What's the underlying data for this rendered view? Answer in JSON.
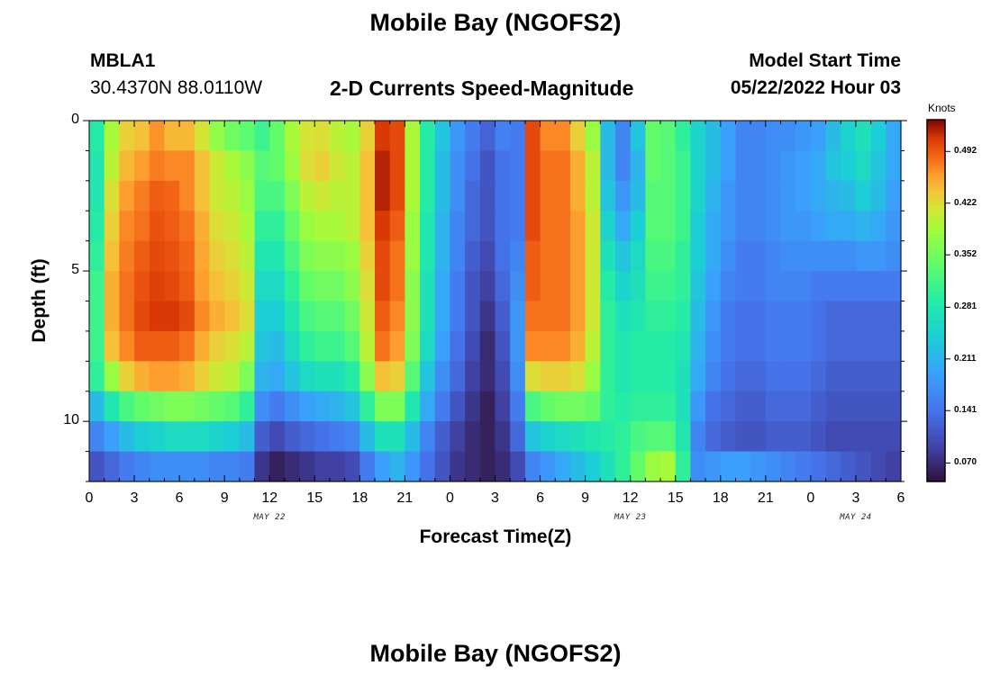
{
  "page": {
    "title": "Mobile Bay (NGOFS2)",
    "title_repeat": "Mobile Bay (NGOFS2)",
    "station_id": "MBLA1",
    "station_coords": "30.4370N  88.0110W",
    "model_start_label": "Model Start Time",
    "model_start_value": "05/22/2022 Hour 03"
  },
  "chart_data": {
    "type": "heatmap",
    "title": "2-D Currents Speed-Magnitude",
    "xlabel": "Forecast Time(Z)",
    "ylabel": "Depth (ft)",
    "x_range_hours": [
      0,
      54
    ],
    "x_ticks": [
      "0",
      "3",
      "6",
      "9",
      "12",
      "15",
      "18",
      "21",
      "0",
      "3",
      "6",
      "9",
      "12",
      "15",
      "18",
      "21",
      "0",
      "3",
      "6"
    ],
    "x_date_labels": [
      {
        "text": "MAY 22",
        "hour": 12
      },
      {
        "text": "MAY 23",
        "hour": 36
      },
      {
        "text": "MAY 24",
        "hour": 51
      }
    ],
    "y_range_ft": [
      0,
      12
    ],
    "y_ticks": [
      "0",
      "5",
      "10"
    ],
    "y_ticks_values": [
      0,
      5,
      10
    ],
    "colorbar": {
      "unit": "Knots",
      "ticks": [
        "0.492",
        "0.422",
        "0.352",
        "0.281",
        "0.211",
        "0.141",
        "0.070"
      ],
      "tick_values": [
        0.492,
        0.422,
        0.352,
        0.281,
        0.211,
        0.141,
        0.07
      ],
      "range": [
        0.045,
        0.535
      ]
    },
    "grid": false,
    "depth_layers": 12,
    "time_hours": [
      0,
      1,
      2,
      3,
      4,
      5,
      6,
      7,
      8,
      9,
      10,
      11,
      12,
      13,
      14,
      15,
      16,
      17,
      18,
      19,
      20,
      21,
      22,
      23,
      24,
      25,
      26,
      27,
      28,
      29,
      30,
      31,
      32,
      33,
      34,
      35,
      36,
      37,
      38,
      39,
      40,
      41,
      42,
      43,
      44,
      45,
      46,
      47,
      48,
      49,
      50,
      51,
      52,
      53
    ],
    "speed_rows_knots": [
      [
        0.29,
        0.39,
        0.43,
        0.44,
        0.465,
        0.445,
        0.445,
        0.415,
        0.375,
        0.35,
        0.335,
        0.31,
        0.34,
        0.39,
        0.415,
        0.42,
        0.4,
        0.39,
        0.43,
        0.51,
        0.5,
        0.39,
        0.29,
        0.23,
        0.18,
        0.15,
        0.125,
        0.155,
        0.15,
        0.5,
        0.47,
        0.47,
        0.43,
        0.38,
        0.22,
        0.16,
        0.23,
        0.34,
        0.33,
        0.3,
        0.25,
        0.22,
        0.19,
        0.16,
        0.16,
        0.17,
        0.17,
        0.18,
        0.19,
        0.22,
        0.25,
        0.27,
        0.24,
        0.2
      ],
      [
        0.28,
        0.4,
        0.445,
        0.46,
        0.475,
        0.47,
        0.47,
        0.44,
        0.41,
        0.39,
        0.37,
        0.33,
        0.34,
        0.38,
        0.42,
        0.43,
        0.41,
        0.4,
        0.44,
        0.52,
        0.5,
        0.39,
        0.29,
        0.22,
        0.17,
        0.14,
        0.11,
        0.14,
        0.15,
        0.5,
        0.48,
        0.48,
        0.45,
        0.4,
        0.22,
        0.16,
        0.21,
        0.34,
        0.33,
        0.31,
        0.25,
        0.22,
        0.19,
        0.16,
        0.16,
        0.17,
        0.18,
        0.19,
        0.2,
        0.23,
        0.24,
        0.26,
        0.23,
        0.2
      ],
      [
        0.28,
        0.42,
        0.46,
        0.475,
        0.49,
        0.485,
        0.47,
        0.44,
        0.41,
        0.4,
        0.38,
        0.32,
        0.32,
        0.36,
        0.4,
        0.41,
        0.4,
        0.4,
        0.44,
        0.52,
        0.5,
        0.39,
        0.29,
        0.22,
        0.17,
        0.13,
        0.11,
        0.14,
        0.15,
        0.5,
        0.48,
        0.48,
        0.45,
        0.4,
        0.23,
        0.18,
        0.22,
        0.33,
        0.33,
        0.31,
        0.25,
        0.21,
        0.18,
        0.16,
        0.16,
        0.17,
        0.18,
        0.19,
        0.2,
        0.21,
        0.22,
        0.24,
        0.22,
        0.19
      ],
      [
        0.29,
        0.43,
        0.47,
        0.48,
        0.495,
        0.49,
        0.48,
        0.45,
        0.42,
        0.41,
        0.39,
        0.3,
        0.3,
        0.34,
        0.38,
        0.39,
        0.39,
        0.4,
        0.44,
        0.51,
        0.49,
        0.38,
        0.28,
        0.21,
        0.16,
        0.13,
        0.11,
        0.14,
        0.15,
        0.5,
        0.48,
        0.48,
        0.46,
        0.41,
        0.25,
        0.2,
        0.24,
        0.33,
        0.33,
        0.31,
        0.24,
        0.2,
        0.18,
        0.16,
        0.16,
        0.17,
        0.18,
        0.18,
        0.19,
        0.2,
        0.2,
        0.21,
        0.2,
        0.18
      ],
      [
        0.3,
        0.44,
        0.475,
        0.49,
        0.5,
        0.495,
        0.485,
        0.455,
        0.43,
        0.42,
        0.4,
        0.28,
        0.28,
        0.32,
        0.36,
        0.37,
        0.37,
        0.38,
        0.43,
        0.5,
        0.48,
        0.38,
        0.28,
        0.21,
        0.16,
        0.12,
        0.1,
        0.14,
        0.16,
        0.49,
        0.48,
        0.48,
        0.46,
        0.41,
        0.27,
        0.23,
        0.26,
        0.32,
        0.32,
        0.3,
        0.24,
        0.2,
        0.17,
        0.15,
        0.15,
        0.16,
        0.17,
        0.17,
        0.17,
        0.17,
        0.17,
        0.18,
        0.18,
        0.17
      ],
      [
        0.31,
        0.45,
        0.48,
        0.495,
        0.505,
        0.5,
        0.49,
        0.46,
        0.44,
        0.43,
        0.41,
        0.26,
        0.26,
        0.3,
        0.34,
        0.35,
        0.35,
        0.37,
        0.42,
        0.5,
        0.48,
        0.37,
        0.27,
        0.2,
        0.15,
        0.11,
        0.09,
        0.13,
        0.17,
        0.49,
        0.48,
        0.48,
        0.46,
        0.41,
        0.29,
        0.25,
        0.27,
        0.31,
        0.31,
        0.3,
        0.23,
        0.19,
        0.16,
        0.15,
        0.15,
        0.16,
        0.16,
        0.16,
        0.15,
        0.15,
        0.15,
        0.15,
        0.15,
        0.15
      ],
      [
        0.31,
        0.45,
        0.48,
        0.5,
        0.51,
        0.51,
        0.5,
        0.47,
        0.45,
        0.44,
        0.42,
        0.24,
        0.24,
        0.28,
        0.32,
        0.33,
        0.33,
        0.35,
        0.41,
        0.49,
        0.47,
        0.37,
        0.27,
        0.2,
        0.15,
        0.11,
        0.08,
        0.12,
        0.18,
        0.48,
        0.48,
        0.48,
        0.46,
        0.41,
        0.3,
        0.27,
        0.28,
        0.3,
        0.3,
        0.29,
        0.22,
        0.18,
        0.15,
        0.14,
        0.14,
        0.15,
        0.15,
        0.15,
        0.14,
        0.13,
        0.13,
        0.13,
        0.13,
        0.13
      ],
      [
        0.31,
        0.44,
        0.47,
        0.49,
        0.49,
        0.49,
        0.48,
        0.45,
        0.43,
        0.42,
        0.4,
        0.23,
        0.22,
        0.26,
        0.3,
        0.31,
        0.31,
        0.33,
        0.4,
        0.48,
        0.46,
        0.36,
        0.26,
        0.19,
        0.14,
        0.1,
        0.07,
        0.11,
        0.18,
        0.47,
        0.47,
        0.47,
        0.45,
        0.4,
        0.3,
        0.28,
        0.29,
        0.29,
        0.29,
        0.28,
        0.21,
        0.17,
        0.15,
        0.14,
        0.14,
        0.15,
        0.15,
        0.15,
        0.14,
        0.13,
        0.13,
        0.13,
        0.13,
        0.13
      ],
      [
        0.3,
        0.38,
        0.43,
        0.45,
        0.46,
        0.46,
        0.45,
        0.43,
        0.41,
        0.4,
        0.36,
        0.21,
        0.2,
        0.23,
        0.26,
        0.27,
        0.27,
        0.29,
        0.37,
        0.44,
        0.43,
        0.33,
        0.23,
        0.17,
        0.13,
        0.09,
        0.07,
        0.1,
        0.17,
        0.42,
        0.43,
        0.43,
        0.42,
        0.38,
        0.3,
        0.28,
        0.29,
        0.29,
        0.29,
        0.27,
        0.2,
        0.16,
        0.14,
        0.13,
        0.13,
        0.14,
        0.14,
        0.14,
        0.13,
        0.12,
        0.12,
        0.12,
        0.12,
        0.12
      ],
      [
        0.22,
        0.28,
        0.32,
        0.34,
        0.35,
        0.36,
        0.36,
        0.35,
        0.34,
        0.33,
        0.3,
        0.17,
        0.15,
        0.17,
        0.19,
        0.2,
        0.21,
        0.23,
        0.3,
        0.36,
        0.36,
        0.28,
        0.2,
        0.15,
        0.11,
        0.08,
        0.06,
        0.09,
        0.15,
        0.32,
        0.34,
        0.35,
        0.35,
        0.34,
        0.3,
        0.29,
        0.3,
        0.3,
        0.3,
        0.27,
        0.18,
        0.14,
        0.13,
        0.12,
        0.12,
        0.13,
        0.13,
        0.13,
        0.12,
        0.11,
        0.11,
        0.11,
        0.11,
        0.11
      ],
      [
        0.16,
        0.19,
        0.22,
        0.24,
        0.25,
        0.26,
        0.26,
        0.26,
        0.25,
        0.24,
        0.22,
        0.12,
        0.1,
        0.12,
        0.13,
        0.14,
        0.15,
        0.16,
        0.22,
        0.27,
        0.27,
        0.22,
        0.16,
        0.12,
        0.09,
        0.07,
        0.06,
        0.08,
        0.13,
        0.23,
        0.25,
        0.26,
        0.27,
        0.28,
        0.29,
        0.3,
        0.32,
        0.33,
        0.33,
        0.28,
        0.16,
        0.13,
        0.12,
        0.11,
        0.11,
        0.12,
        0.12,
        0.12,
        0.11,
        0.1,
        0.1,
        0.1,
        0.1,
        0.1
      ],
      [
        0.11,
        0.13,
        0.15,
        0.16,
        0.17,
        0.17,
        0.17,
        0.17,
        0.16,
        0.16,
        0.15,
        0.08,
        0.06,
        0.07,
        0.08,
        0.09,
        0.09,
        0.1,
        0.15,
        0.19,
        0.21,
        0.18,
        0.14,
        0.11,
        0.08,
        0.07,
        0.06,
        0.07,
        0.1,
        0.16,
        0.18,
        0.2,
        0.22,
        0.24,
        0.27,
        0.3,
        0.34,
        0.38,
        0.39,
        0.3,
        0.17,
        0.18,
        0.19,
        0.19,
        0.18,
        0.17,
        0.16,
        0.15,
        0.14,
        0.13,
        0.12,
        0.11,
        0.1,
        0.09
      ]
    ]
  }
}
